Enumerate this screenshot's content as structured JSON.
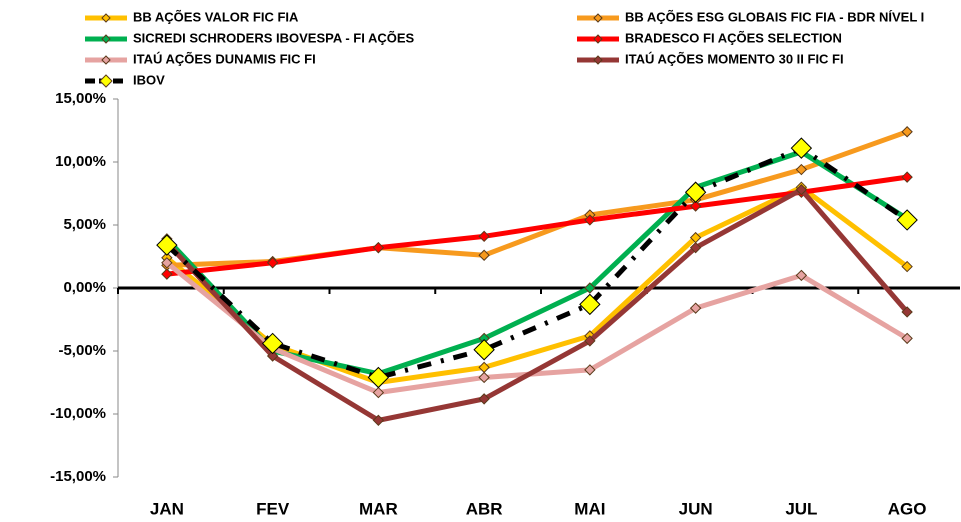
{
  "chart_data": {
    "type": "line",
    "categories": [
      "JAN",
      "FEV",
      "MAR",
      "ABR",
      "MAI",
      "JUN",
      "JUL",
      "AGO"
    ],
    "ylim": [
      -15,
      15
    ],
    "yticks": [
      {
        "value": -15,
        "label": "-15,00%"
      },
      {
        "value": -10,
        "label": "-10,00%"
      },
      {
        "value": -5,
        "label": "-5,00%"
      },
      {
        "value": 0,
        "label": "0,00%"
      },
      {
        "value": 5,
        "label": "5,00%"
      },
      {
        "value": 10,
        "label": "10,00%"
      },
      {
        "value": 15,
        "label": "15,00%"
      }
    ],
    "series": [
      {
        "name": "BB AÇÕES VALOR FIC FIA",
        "color": "#ffc000",
        "values": [
          2.4,
          -4.5,
          -7.5,
          -6.3,
          -3.8,
          4.0,
          8.0,
          1.7
        ]
      },
      {
        "name": "BB AÇÕES ESG GLOBAIS FIC FIA - BDR NÍVEL I",
        "color": "#f79a1e",
        "values": [
          1.8,
          2.1,
          3.2,
          2.6,
          5.8,
          7.0,
          9.4,
          12.4
        ]
      },
      {
        "name": "SICREDI SCHRODERS IBOVESPA - FI AÇÕES",
        "color": "#00b050",
        "values": [
          3.9,
          -5.0,
          -6.8,
          -4.0,
          0.0,
          8.0,
          10.8,
          5.5
        ]
      },
      {
        "name": "BRADESCO FI AÇÕES SELECTION",
        "color": "#ff0000",
        "values": [
          1.1,
          2.0,
          3.2,
          4.1,
          5.4,
          6.5,
          7.6,
          8.8
        ]
      },
      {
        "name": "ITAÚ AÇÕES DUNAMIS FIC FI",
        "color": "#e6a3a1",
        "values": [
          2.0,
          -4.8,
          -8.3,
          -7.1,
          -6.5,
          -1.6,
          1.0,
          -4.0
        ]
      },
      {
        "name": "ITAÚ AÇÕES MOMENTO 30 II FIC FI",
        "color": "#953735",
        "values": [
          3.6,
          -5.4,
          -10.5,
          -8.8,
          -4.2,
          3.2,
          7.8,
          -1.9
        ]
      },
      {
        "name": "IBOV",
        "color": "#000000",
        "marker_color": "#ffff00",
        "dashed": true,
        "values": [
          3.4,
          -4.4,
          -7.1,
          -4.9,
          -1.3,
          7.6,
          11.1,
          5.4
        ]
      }
    ]
  }
}
